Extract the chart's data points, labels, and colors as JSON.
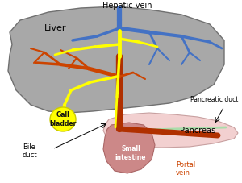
{
  "bg_color": "#ffffff",
  "liver_color": "#a8a8a8",
  "liver_edge": "#707070",
  "pancreas_color": "#f2d0d0",
  "pancreas_edge": "#c8a0a0",
  "small_intestine_color": "#cc8888",
  "small_intestine_edge": "#aa6666",
  "gall_bladder_color": "#ffff00",
  "gall_bladder_edge": "#cccc00",
  "hepatic_vein_color": "#4472c4",
  "portal_vein_color": "#b03000",
  "bile_duct_color": "#ffff00",
  "artery_color": "#cc4400",
  "pancreatic_duct_color": "#aaddaa",
  "text_color": "#000000",
  "portal_vein_label_color": "#cc4400",
  "labels": {
    "hepatic_vein": "Hepatic vein",
    "liver": "Liver",
    "gall_bladder": "Gall\nbladder",
    "bile_duct": "Bile\nduct",
    "small_intestine": "Small\nintestine",
    "portal_vein": "Portal\nvein",
    "pancreas": "Pancreas",
    "pancreatic_duct": "Pancreatic duct"
  }
}
